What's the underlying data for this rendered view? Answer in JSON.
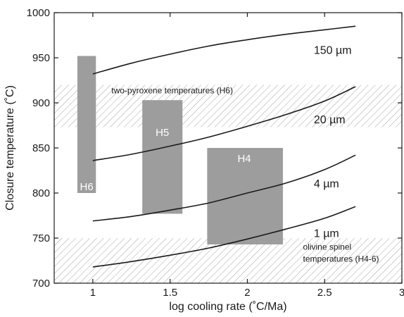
{
  "chart_data": {
    "type": "line",
    "xlabel": "log cooling rate (˚C/Ma)",
    "ylabel": "Closure temperature (˚C)",
    "xlim": [
      0.75,
      3.0
    ],
    "ylim": [
      700,
      1000
    ],
    "xticks": [
      1,
      1.5,
      2,
      2.5,
      3
    ],
    "xtick_labels": [
      "1",
      "1.5",
      "2",
      "2.5",
      "3"
    ],
    "yticks": [
      700,
      750,
      800,
      850,
      900,
      950,
      1000
    ],
    "ytick_labels": [
      "700",
      "750",
      "800",
      "850",
      "900",
      "950",
      "1000"
    ],
    "grid": false,
    "series": [
      {
        "name": "150 µm",
        "x": [
          1.0,
          1.25,
          1.5,
          1.75,
          2.0,
          2.25,
          2.5,
          2.7
        ],
        "y": [
          932,
          944,
          954,
          963,
          970,
          976,
          981,
          985
        ]
      },
      {
        "name": "20 µm",
        "x": [
          1.0,
          1.25,
          1.5,
          1.75,
          2.0,
          2.25,
          2.5,
          2.7
        ],
        "y": [
          836,
          843,
          852,
          862,
          874,
          887,
          902,
          918
        ]
      },
      {
        "name": "4 µm",
        "x": [
          1.0,
          1.25,
          1.5,
          1.75,
          2.0,
          2.25,
          2.5,
          2.7
        ],
        "y": [
          769,
          774,
          781,
          789,
          800,
          811,
          826,
          842
        ]
      },
      {
        "name": "1 µm",
        "x": [
          1.0,
          1.25,
          1.5,
          1.75,
          2.0,
          2.25,
          2.5,
          2.7
        ],
        "y": [
          718,
          724,
          731,
          739,
          749,
          760,
          772,
          785
        ]
      }
    ],
    "boxes": [
      {
        "label": "H6",
        "x": [
          0.9,
          1.02
        ],
        "y": [
          800,
          952
        ],
        "color": "#9d9d9d"
      },
      {
        "label": "H5",
        "x": [
          1.32,
          1.58
        ],
        "y": [
          777,
          903
        ],
        "color": "#9d9d9d"
      },
      {
        "label": "H4",
        "x": [
          1.74,
          2.23
        ],
        "y": [
          743,
          850
        ],
        "color": "#9d9d9d"
      }
    ],
    "bands": [
      {
        "label": "two-pyroxene temperatures (H6)",
        "y": [
          873,
          920
        ]
      },
      {
        "label_lines": [
          "olivine spinel",
          "temperatures (H4-6)"
        ],
        "y": [
          700,
          750
        ]
      }
    ],
    "colors": {
      "line": "#1a1a1a",
      "box": "#9d9d9d",
      "hatch": "#9a9a9a",
      "box_text": "#ffffff"
    }
  }
}
